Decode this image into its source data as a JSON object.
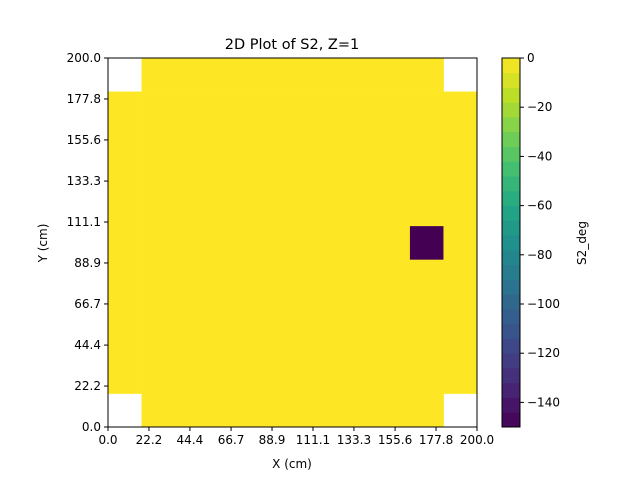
{
  "chart_data": {
    "type": "heatmap",
    "title": "2D Plot of S2, Z=1",
    "xlabel": "X (cm)",
    "ylabel": "Y (cm)",
    "colorbar_label": "S2_deg",
    "xlim": [
      0.0,
      200.0
    ],
    "ylim": [
      0.0,
      200.0
    ],
    "x_ticks": [
      "0.0",
      "22.2",
      "44.4",
      "66.7",
      "88.9",
      "111.1",
      "133.3",
      "155.6",
      "177.8",
      "200.0"
    ],
    "y_ticks": [
      "0.0",
      "22.2",
      "44.4",
      "66.7",
      "88.9",
      "111.1",
      "133.3",
      "155.6",
      "177.8",
      "200.0"
    ],
    "x_edges": [
      0.0,
      18.18,
      36.36,
      54.55,
      72.73,
      90.91,
      109.09,
      127.27,
      145.45,
      163.64,
      181.82,
      200.0
    ],
    "y_edges": [
      0.0,
      18.18,
      36.36,
      54.55,
      72.73,
      90.91,
      109.09,
      127.27,
      145.45,
      163.64,
      181.82,
      200.0
    ],
    "colormap": "viridis",
    "clim": [
      -150,
      0
    ],
    "colorbar_levels": 25,
    "colorbar_ticks": [
      0,
      -20,
      -40,
      -60,
      -80,
      -100,
      -120,
      -140
    ],
    "colorbar_tick_labels": [
      "0",
      "−20",
      "−40",
      "−60",
      "−80",
      "−100",
      "−120",
      "−140"
    ],
    "values_note_rows_bottom_to_top": "null = no data (white)",
    "values": [
      [
        null,
        0,
        0,
        0,
        0,
        0,
        0,
        0,
        0,
        0,
        null
      ],
      [
        0,
        0,
        0,
        0,
        0,
        0,
        0,
        0,
        0,
        0,
        0
      ],
      [
        0,
        0,
        0,
        0,
        0,
        0,
        0,
        0,
        0,
        0,
        0
      ],
      [
        0,
        0,
        0,
        0,
        0,
        0,
        0,
        0,
        0,
        0,
        0
      ],
      [
        0,
        0,
        0,
        0,
        0,
        0,
        0,
        0,
        0,
        0,
        0
      ],
      [
        0,
        0,
        0,
        0,
        0,
        0,
        0,
        0,
        0,
        -150,
        0
      ],
      [
        0,
        0,
        0,
        0,
        0,
        0,
        0,
        0,
        0,
        0,
        0
      ],
      [
        0,
        0,
        0,
        0,
        0,
        0,
        0,
        0,
        0,
        0,
        0
      ],
      [
        0,
        0,
        0,
        0,
        0,
        0,
        0,
        0,
        0,
        0,
        0
      ],
      [
        0,
        0,
        0,
        0,
        0,
        0,
        0,
        0,
        0,
        0,
        0
      ],
      [
        null,
        0,
        0,
        0,
        0,
        0,
        0,
        0,
        0,
        0,
        null
      ]
    ]
  }
}
